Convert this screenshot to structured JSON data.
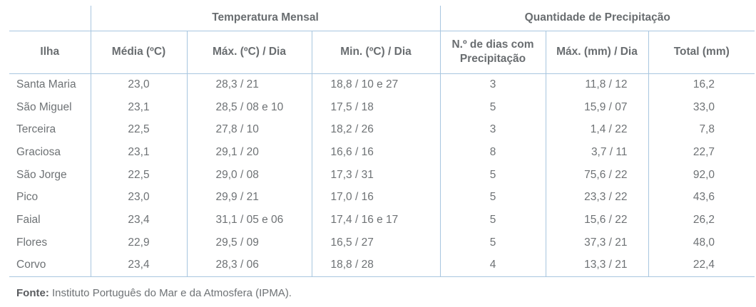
{
  "table": {
    "group_headers": {
      "temperature": "Temperatura Mensal",
      "precipitation": "Quantidade de Precipitação"
    },
    "columns": [
      "Ilha",
      "Média (ºC)",
      "Máx. (ºC) / Dia",
      "Min. (ºC) / Dia",
      "N.º de dias com Precipitação",
      "Máx. (mm) / Dia",
      "Total (mm)"
    ],
    "rows": [
      [
        "Santa Maria",
        "23,0",
        "28,3 / 21",
        "18,8 / 10 e 27",
        "3",
        "11,8 / 12",
        "16,2"
      ],
      [
        "São Miguel",
        "23,1",
        "28,5 / 08 e 10",
        "17,5 / 18",
        "5",
        "15,9 / 07",
        "33,0"
      ],
      [
        "Terceira",
        "22,5",
        "27,8 / 10",
        "18,2 / 26",
        "3",
        "1,4 / 22",
        "7,8"
      ],
      [
        "Graciosa",
        "23,1",
        "29,1 / 20",
        "16,6 / 16",
        "8",
        "3,7 / 11",
        "22,7"
      ],
      [
        "São Jorge",
        "22,5",
        "29,0 / 08",
        "17,3 / 31",
        "5",
        "75,6 / 22",
        "92,0"
      ],
      [
        "Pico",
        "23,0",
        "29,9 / 21",
        "17,0 / 16",
        "5",
        "23,3 / 22",
        "43,6"
      ],
      [
        "Faial",
        "23,4",
        "31,1 / 05 e 06",
        "17,4 / 16 e 17",
        "5",
        "15,6 / 22",
        "26,2"
      ],
      [
        "Flores",
        "22,9",
        "29,5 / 09",
        "16,5 / 27",
        "5",
        "37,3 / 21",
        "48,0"
      ],
      [
        "Corvo",
        "23,4",
        "28,3 / 06",
        "18,8 / 28",
        "4",
        "13,3 / 21",
        "22,4"
      ]
    ]
  },
  "footer": {
    "source_label": "Fonte:",
    "source_text": " Instituto Português do Mar e da Atmosfera (IPMA)."
  },
  "colors": {
    "border": "#a8c6df",
    "text": "#6e7275",
    "header_text": "#696d70"
  }
}
